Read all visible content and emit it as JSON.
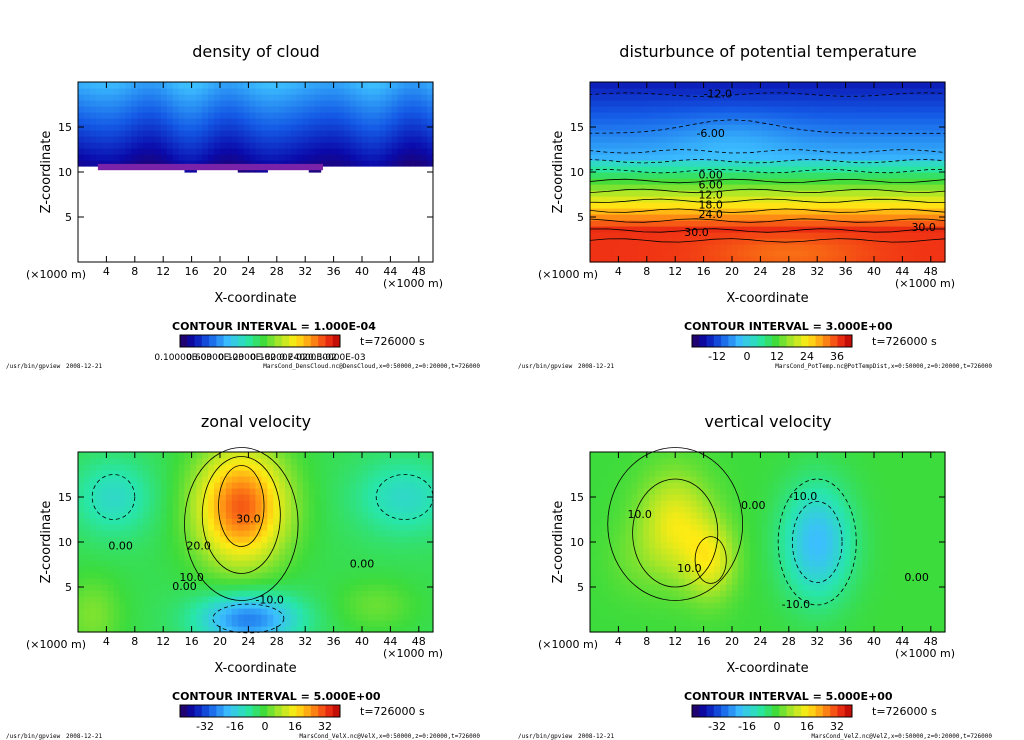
{
  "common": {
    "x_axis_label": "X-coordinate",
    "y_axis_label": "Z-coordinate",
    "x_unit_label": "(×1000 m)",
    "x_unit_label_left": "(×1000 m)",
    "footer_left": "/usr/bin/gpview",
    "footer_date": "2008-12-21",
    "colors": {
      "frame": "#000000",
      "background": "#ffffff"
    }
  },
  "chart_data": [
    {
      "type": "heatmap",
      "title": "density of cloud",
      "xlabel": "X-coordinate",
      "ylabel": "Z-coordinate",
      "xlim": [
        0,
        50
      ],
      "ylim": [
        0,
        20
      ],
      "x_ticks": [
        4,
        8,
        12,
        16,
        20,
        24,
        28,
        32,
        36,
        40,
        44,
        48
      ],
      "y_ticks": [
        5,
        10,
        15
      ],
      "contour_interval": "CONTOUR INTERVAL = 1.000E-04",
      "time_label": "t=726000 s",
      "colorbar_labels": [
        "0.10000E-03",
        "0.60000E-03",
        "0.12000E-02",
        "0.18000E-02",
        "0.24000E-02",
        "0.30000E-03"
      ],
      "colorbar_text": "0.10000E-030000E-0200E-02800E-0200E-0200E-03",
      "footer_file": "MarsCond_DensCloud.nc@DensCloud,x=0:50000,z=0:20000,t=726000",
      "contour_labels": []
    },
    {
      "type": "heatmap",
      "title": "disturbunce of potential temperature",
      "xlabel": "X-coordinate",
      "ylabel": "Z-coordinate",
      "xlim": [
        0,
        50
      ],
      "ylim": [
        0,
        20
      ],
      "x_ticks": [
        4,
        8,
        12,
        16,
        20,
        24,
        28,
        32,
        36,
        40,
        44,
        48
      ],
      "y_ticks": [
        5,
        10,
        15
      ],
      "contour_interval": "CONTOUR INTERVAL = 3.000E+00",
      "time_label": "t=726000 s",
      "colorbar_labels": [
        "-12",
        "0",
        "12",
        "24",
        "36"
      ],
      "footer_file": "MarsCond_PotTemp.nc@PotTempDist,x=0:50000,z=0:20000,t=726000",
      "contour_labels": [
        "-12.0",
        "-6.00",
        "0.00",
        "6.00",
        "12.0",
        "18.0",
        "24.0",
        "30.0",
        "30.0"
      ]
    },
    {
      "type": "heatmap",
      "title": "zonal velocity",
      "xlabel": "X-coordinate",
      "ylabel": "Z-coordinate",
      "xlim": [
        0,
        50
      ],
      "ylim": [
        0,
        20
      ],
      "x_ticks": [
        4,
        8,
        12,
        16,
        20,
        24,
        28,
        32,
        36,
        40,
        44,
        48
      ],
      "y_ticks": [
        5,
        10,
        15
      ],
      "contour_interval": "CONTOUR INTERVAL = 5.000E+00",
      "time_label": "t=726000 s",
      "colorbar_labels": [
        "-32",
        "-16",
        "0",
        "16",
        "32"
      ],
      "footer_file": "MarsCond_VelX.nc@VelX,x=0:50000,z=0:20000,t=726000",
      "contour_labels": [
        "30.0",
        "20.0",
        "10.0",
        "0.00",
        "0.00",
        "0.00",
        "-10.0"
      ]
    },
    {
      "type": "heatmap",
      "title": "vertical velocity",
      "xlabel": "X-coordinate",
      "ylabel": "Z-coordinate",
      "xlim": [
        0,
        50
      ],
      "ylim": [
        0,
        20
      ],
      "x_ticks": [
        4,
        8,
        12,
        16,
        20,
        24,
        28,
        32,
        36,
        40,
        44,
        48
      ],
      "y_ticks": [
        5,
        10,
        15
      ],
      "contour_interval": "CONTOUR INTERVAL = 5.000E+00",
      "time_label": "t=726000 s",
      "colorbar_labels": [
        "-32",
        "-16",
        "0",
        "16",
        "32"
      ],
      "footer_file": "MarsCond_VelZ.nc@VelZ,x=0:50000,z=0:20000,t=726000",
      "contour_labels": [
        "10.0",
        "0.00",
        "-10.0",
        "-10.0",
        "10.0",
        "0.00"
      ]
    }
  ]
}
